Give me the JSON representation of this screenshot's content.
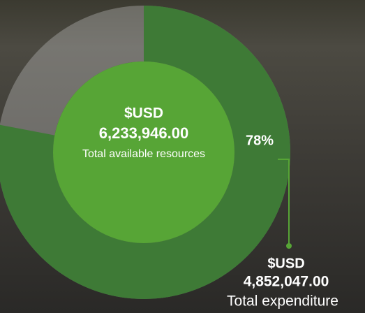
{
  "chart_data": {
    "type": "progress-ring",
    "center_currency": "$USD",
    "total": 6233946,
    "total_label": "6,233,946.00",
    "center_label": "Total available resources",
    "percent": 78,
    "percent_label": "78%",
    "callout_currency": "$USD",
    "expenditure": 4852047,
    "expenditure_label": "4,852,047.00",
    "callout_label": "Total expenditure",
    "range": [
      0,
      100
    ],
    "ring_color": "#3e7a36",
    "center_color": "#57a536",
    "track_color": "rgba(200,200,200,0.35)"
  }
}
